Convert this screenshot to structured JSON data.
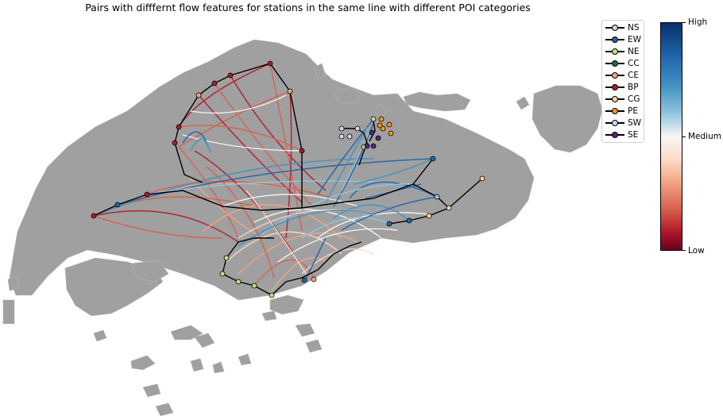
{
  "title": "Pairs with difffernt flow features for stations in the same line with different POI categories",
  "legend": {
    "items": [
      {
        "label": "NS",
        "color": "#c6dbef"
      },
      {
        "label": "EW",
        "color": "#2166ac"
      },
      {
        "label": "NE",
        "color": "#b8e186"
      },
      {
        "label": "CC",
        "color": "#1b7837"
      },
      {
        "label": "CE",
        "color": "#f4a582"
      },
      {
        "label": "BP",
        "color": "#b2182b"
      },
      {
        "label": "CG",
        "color": "#fdd49e"
      },
      {
        "label": "PE",
        "color": "#f7941d"
      },
      {
        "label": "SW",
        "color": "#d9d2e9"
      },
      {
        "label": "SE",
        "color": "#542788"
      }
    ]
  },
  "colorbar": {
    "high": "High",
    "medium": "Medium",
    "low": "Low"
  },
  "colors": {
    "land": "#a0a0a0",
    "route": "#000000",
    "low": "#67001f",
    "high": "#08306b"
  }
}
